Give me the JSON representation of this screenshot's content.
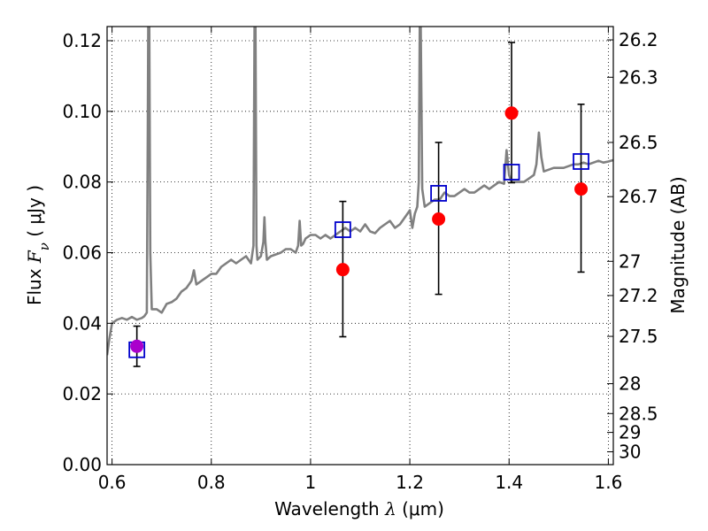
{
  "chart_data": {
    "type": "scatter",
    "xlabel": "Wavelength  λ (μm)",
    "ylabel": "Flux  Fν  ( μJy )",
    "ylabel_right": "Magnitude (AB)",
    "xlim": [
      0.59,
      1.61
    ],
    "ylim": [
      0.0,
      0.124
    ],
    "grid": true,
    "x_ticks": [
      {
        "value": 0.6,
        "label": "0.6"
      },
      {
        "value": 0.8,
        "label": "0.8"
      },
      {
        "value": 1.0,
        "label": "1"
      },
      {
        "value": 1.2,
        "label": "1.2"
      },
      {
        "value": 1.4,
        "label": "1.4"
      },
      {
        "value": 1.6,
        "label": "1.6"
      }
    ],
    "y_ticks": [
      {
        "value": 0.0,
        "label": "0.00"
      },
      {
        "value": 0.02,
        "label": "0.02"
      },
      {
        "value": 0.04,
        "label": "0.04"
      },
      {
        "value": 0.06,
        "label": "0.06"
      },
      {
        "value": 0.08,
        "label": "0.08"
      },
      {
        "value": 0.1,
        "label": "0.10"
      },
      {
        "value": 0.12,
        "label": "0.12"
      }
    ],
    "mag_ticks": [
      {
        "value": 26.2,
        "label": "26.2"
      },
      {
        "value": 26.3,
        "label": "26.3"
      },
      {
        "value": 26.5,
        "label": "26.5"
      },
      {
        "value": 26.7,
        "label": "26.7"
      },
      {
        "value": 27.0,
        "label": "27"
      },
      {
        "value": 27.2,
        "label": "27.2"
      },
      {
        "value": 27.5,
        "label": "27.5"
      },
      {
        "value": 28.0,
        "label": "28"
      },
      {
        "value": 28.5,
        "label": "28.5"
      },
      {
        "value": 29.0,
        "label": "29"
      },
      {
        "value": 30.0,
        "label": "30"
      }
    ],
    "colors": {
      "model": "#808080",
      "observed": "#ff0000",
      "model_phot": "#0000cc",
      "first_point": "#aa00cc",
      "errorbar": "#000000"
    },
    "model_spectrum": {
      "x": [
        0.59,
        0.595,
        0.6,
        0.61,
        0.62,
        0.63,
        0.64,
        0.65,
        0.66,
        0.665,
        0.67,
        0.672,
        0.673,
        0.675,
        0.677,
        0.68,
        0.69,
        0.7,
        0.71,
        0.72,
        0.73,
        0.74,
        0.75,
        0.76,
        0.765,
        0.77,
        0.78,
        0.79,
        0.8,
        0.81,
        0.82,
        0.83,
        0.84,
        0.85,
        0.86,
        0.87,
        0.88,
        0.885,
        0.887,
        0.889,
        0.891,
        0.893,
        0.9,
        0.905,
        0.907,
        0.909,
        0.912,
        0.92,
        0.93,
        0.94,
        0.95,
        0.96,
        0.97,
        0.975,
        0.978,
        0.981,
        0.985,
        0.99,
        1.0,
        1.01,
        1.02,
        1.03,
        1.04,
        1.05,
        1.06,
        1.07,
        1.08,
        1.09,
        1.1,
        1.11,
        1.12,
        1.13,
        1.14,
        1.15,
        1.16,
        1.17,
        1.18,
        1.19,
        1.2,
        1.205,
        1.21,
        1.215,
        1.218,
        1.22,
        1.222,
        1.225,
        1.23,
        1.24,
        1.25,
        1.26,
        1.27,
        1.28,
        1.29,
        1.3,
        1.31,
        1.32,
        1.33,
        1.34,
        1.35,
        1.36,
        1.37,
        1.38,
        1.39,
        1.395,
        1.4,
        1.405,
        1.41,
        1.42,
        1.43,
        1.44,
        1.45,
        1.455,
        1.46,
        1.465,
        1.47,
        1.48,
        1.49,
        1.5,
        1.51,
        1.52,
        1.53,
        1.54,
        1.55,
        1.56,
        1.57,
        1.58,
        1.59,
        1.6,
        1.61
      ],
      "y": [
        0.031,
        0.036,
        0.04,
        0.041,
        0.0415,
        0.041,
        0.0418,
        0.041,
        0.0415,
        0.042,
        0.043,
        0.095,
        0.124,
        0.124,
        0.06,
        0.044,
        0.044,
        0.043,
        0.0455,
        0.046,
        0.047,
        0.049,
        0.05,
        0.052,
        0.055,
        0.051,
        0.052,
        0.053,
        0.054,
        0.054,
        0.056,
        0.057,
        0.058,
        0.057,
        0.058,
        0.059,
        0.057,
        0.062,
        0.124,
        0.124,
        0.062,
        0.058,
        0.059,
        0.063,
        0.07,
        0.063,
        0.058,
        0.059,
        0.0595,
        0.06,
        0.061,
        0.061,
        0.06,
        0.062,
        0.069,
        0.062,
        0.0625,
        0.064,
        0.065,
        0.065,
        0.064,
        0.065,
        0.064,
        0.065,
        0.066,
        0.067,
        0.066,
        0.067,
        0.066,
        0.068,
        0.066,
        0.0655,
        0.067,
        0.068,
        0.069,
        0.067,
        0.068,
        0.07,
        0.072,
        0.067,
        0.071,
        0.073,
        0.08,
        0.124,
        0.124,
        0.078,
        0.073,
        0.074,
        0.075,
        0.075,
        0.077,
        0.076,
        0.076,
        0.077,
        0.078,
        0.077,
        0.077,
        0.078,
        0.079,
        0.078,
        0.079,
        0.08,
        0.0795,
        0.089,
        0.082,
        0.08,
        0.08,
        0.08,
        0.08,
        0.081,
        0.082,
        0.085,
        0.094,
        0.087,
        0.083,
        0.0835,
        0.084,
        0.084,
        0.084,
        0.0845,
        0.085,
        0.085,
        0.0855,
        0.085,
        0.0855,
        0.086,
        0.0855,
        0.0858,
        0.0862
      ]
    },
    "observed": [
      {
        "x": 1.065,
        "y": 0.0552,
        "yerr_low": 0.0362,
        "yerr_high": 0.0745
      },
      {
        "x": 1.258,
        "y": 0.0695,
        "yerr_low": 0.0482,
        "yerr_high": 0.0912
      },
      {
        "x": 1.405,
        "y": 0.0995,
        "yerr_low": 0.0798,
        "yerr_high": 0.1195
      },
      {
        "x": 1.545,
        "y": 0.078,
        "yerr_low": 0.0545,
        "yerr_high": 0.102
      }
    ],
    "first_point": {
      "x": 0.65,
      "y": 0.0335,
      "yerr_low": 0.0278,
      "yerr_high": 0.0392
    },
    "model_photometry": [
      {
        "x": 0.65,
        "y": 0.0325
      },
      {
        "x": 1.065,
        "y": 0.0665
      },
      {
        "x": 1.258,
        "y": 0.0768
      },
      {
        "x": 1.405,
        "y": 0.0828
      },
      {
        "x": 1.545,
        "y": 0.0858
      }
    ]
  }
}
